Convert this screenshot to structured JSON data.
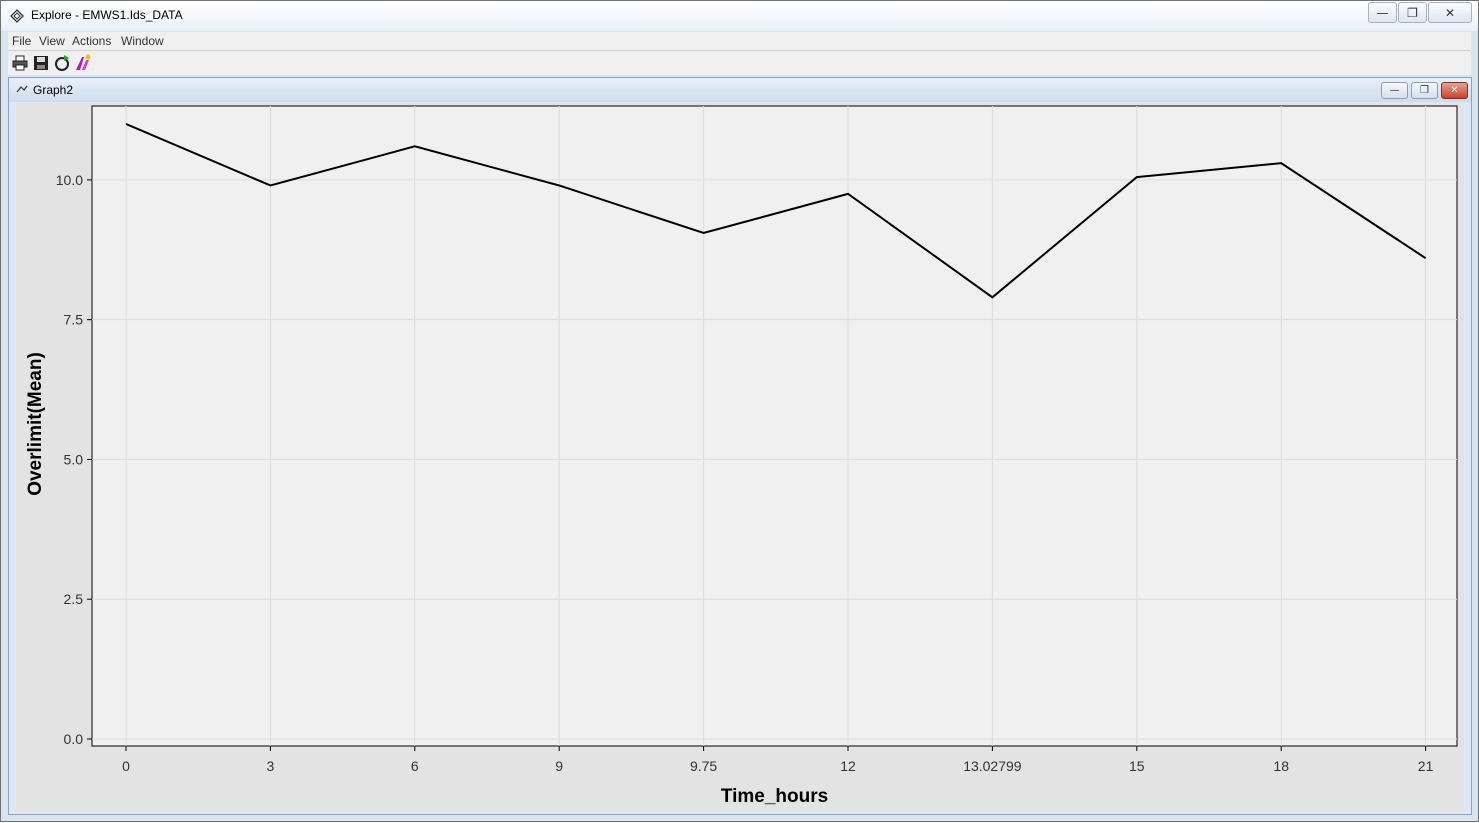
{
  "window": {
    "title": "Explore - EMWS1.Ids_DATA",
    "controls": {
      "minimize": "—",
      "restore": "❐",
      "close": "✕"
    }
  },
  "menubar": {
    "items": [
      "File",
      "View",
      "Actions",
      "Window"
    ]
  },
  "toolbar": {
    "icons": [
      "print-icon",
      "save-icon",
      "refresh-icon",
      "properties-icon"
    ]
  },
  "graph_window": {
    "title": "Graph2",
    "controls": {
      "minimize": "—",
      "restore": "❐",
      "close": "✕"
    }
  },
  "chart_data": {
    "type": "line",
    "xlabel": "Time_hours",
    "ylabel": "Overlimit(Mean)",
    "categories": [
      "0",
      "3",
      "6",
      "9",
      "9.75",
      "12",
      "13.02799",
      "15",
      "18",
      "21"
    ],
    "values": [
      11.0,
      9.9,
      10.6,
      9.9,
      9.05,
      9.75,
      7.9,
      10.05,
      10.3,
      8.6
    ],
    "ylim": [
      0.0,
      11.25
    ],
    "yticks": [
      "0.0",
      "2.5",
      "5.0",
      "7.5",
      "10.0"
    ],
    "grid": true,
    "line_color": "#000000"
  }
}
